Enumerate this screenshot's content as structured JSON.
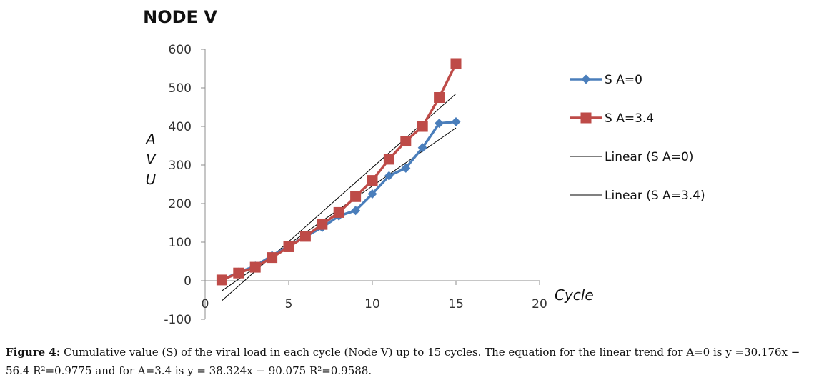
{
  "chart_data": {
    "type": "line",
    "title": "NODE V",
    "xlabel": "Cycle",
    "ylabel": "AVU",
    "xlim": [
      0,
      20
    ],
    "ylim": [
      -100,
      600
    ],
    "xticks": [
      0,
      5,
      10,
      15,
      20
    ],
    "yticks": [
      -100,
      0,
      100,
      200,
      300,
      400,
      500,
      600
    ],
    "grid": false,
    "legend_position": "right",
    "series": [
      {
        "name": "S A=0",
        "color": "#4a7ebb",
        "marker": "diamond",
        "x": [
          1,
          2,
          3,
          4,
          5,
          6,
          7,
          8,
          9,
          10,
          11,
          12,
          13,
          14,
          15
        ],
        "y": [
          2,
          22,
          38,
          65,
          90,
          115,
          138,
          168,
          182,
          225,
          272,
          292,
          345,
          408,
          412
        ]
      },
      {
        "name": "S A=3.4",
        "color": "#be4b48",
        "marker": "square",
        "x": [
          1,
          2,
          3,
          4,
          5,
          6,
          7,
          8,
          9,
          10,
          11,
          12,
          13,
          14,
          15
        ],
        "y": [
          2,
          20,
          35,
          60,
          88,
          115,
          146,
          177,
          218,
          260,
          315,
          362,
          400,
          475,
          563
        ]
      }
    ],
    "trendlines": [
      {
        "name": "Linear (S A=0)",
        "color": "#000000",
        "slope": 30.176,
        "intercept": -56.4,
        "x_range": [
          1,
          15
        ]
      },
      {
        "name": "Linear (S A=3.4)",
        "color": "#000000",
        "slope": 38.324,
        "intercept": -90.075,
        "x_range": [
          1,
          15
        ]
      }
    ]
  },
  "caption": {
    "label": "Figure 4:",
    "text": " Cumulative value (S) of the viral load in each cycle (Node V) up to 15 cycles. The equation for the linear trend for A=0 is y =30.176x − 56.4 R²=0.9775 and for A=3.4 is y = 38.324x − 90.075 R²=0.9588."
  }
}
